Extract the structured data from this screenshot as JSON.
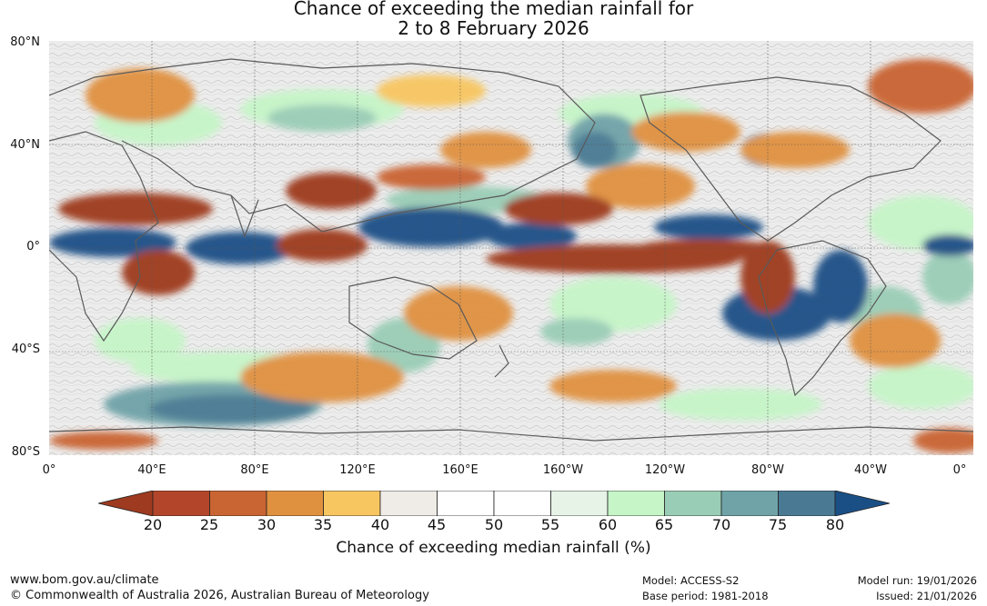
{
  "title": {
    "line1": "Chance of exceeding the median rainfall for",
    "line2": "2 to 8 February 2026"
  },
  "map": {
    "lat_labels": [
      "80°N",
      "40°N",
      "0°",
      "40°S",
      "80°S"
    ],
    "lon_labels": [
      "0°",
      "40°E",
      "80°E",
      "120°E",
      "160°E",
      "160°W",
      "120°W",
      "80°W",
      "40°W",
      "0°"
    ]
  },
  "colorbar": {
    "ticks": [
      "20",
      "25",
      "30",
      "35",
      "40",
      "45",
      "50",
      "55",
      "60",
      "65",
      "70",
      "75",
      "80"
    ],
    "colors": [
      "#9e3a1f",
      "#b3462a",
      "#c96433",
      "#e0913f",
      "#f8c661",
      "#efebe6",
      "#ffffff",
      "#ffffff",
      "#e6f3e6",
      "#c6f5c8",
      "#9acdb6",
      "#6fa3a8",
      "#4a7a93",
      "#1a4f86"
    ],
    "label": "Chance of exceeding median rainfall (%)"
  },
  "footer": {
    "url": "www.bom.gov.au/climate",
    "copyright": "© Commonwealth of Australia 2026, Australian Bureau of Meteorology",
    "model": "Model: ACCESS-S2",
    "base_period": "Base period: 1981-2018",
    "model_run": "Model run: 19/01/2026",
    "issued": "Issued: 21/01/2026"
  }
}
